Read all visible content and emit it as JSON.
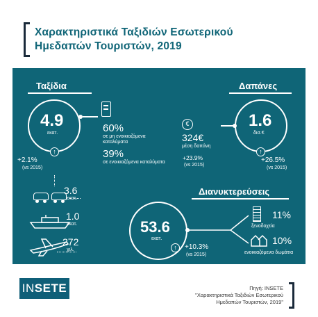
{
  "title": {
    "line1": "Χαρακτηριστικά Ταξιδιών Εσωτερικού",
    "line2": "Ημεδαπών Τουριστών, 2019"
  },
  "trips": {
    "heading": "Ταξίδια",
    "total": "4.9",
    "total_unit": "εκατ.",
    "change": "+2.1%",
    "change_note": "(vs 2015)",
    "non_rented_pct": "60%",
    "non_rented_label": "σε μη ενοικιαζόμενα καταλύματα",
    "rented_pct": "39%",
    "rented_label": "σε ενοικιαζόμενα καταλύματα",
    "road": "3.6",
    "road_unit": "εκατ.",
    "sea": "1.0",
    "sea_unit": "εκατ.",
    "air": "272",
    "air_unit": "χιλ."
  },
  "spending": {
    "heading": "Δαπάνες",
    "total": "1.6",
    "total_unit": "δισ.€",
    "avg": "324€",
    "avg_label": "μέση δαπάνη",
    "avg_change": "+23.9%",
    "avg_change_note": "(vs 2015)",
    "change": "+26.5%",
    "change_note": "(vs 2015)",
    "euro_symbol": "€"
  },
  "nights": {
    "heading": "Διανυκτερεύσεις",
    "total": "53.6",
    "total_unit": "εκατ.",
    "change": "+10.3%",
    "change_note": "(vs 2015)",
    "hotels_pct": "11%",
    "hotels_label": "ξενοδοχεία",
    "rooms_pct": "10%",
    "rooms_label": "ενοικιαζόμενα δωμάτια"
  },
  "footer": {
    "logo_in": "IN",
    "logo_sete": "SETE",
    "source_line1": "Πηγή: INSETE",
    "source_line2": "\"Χαρακτηριστικά Ταξιδιών Εσωτερικού",
    "source_line3": "Ημεδαπών Τουριστών, 2019\""
  },
  "colors": {
    "teal": "#0f6577",
    "white": "#ffffff",
    "dark": "#1a2a3a"
  },
  "icons": [
    "suitcase-icon",
    "car-icon",
    "ship-icon",
    "plane-icon",
    "euro-icon",
    "hotel-icon",
    "house-icon",
    "arrow-up-icon"
  ],
  "chart_data": {
    "type": "table",
    "trips_million": 4.9,
    "trips_change_pct": 2.1,
    "accommodation_share_pct": {
      "non_rented": 60,
      "rented": 39
    },
    "transport": {
      "road_million": 3.6,
      "sea_million": 1.0,
      "air_thousand": 272
    },
    "spending_billion_eur": 1.6,
    "spending_change_pct": 26.5,
    "avg_spending_eur": 324,
    "avg_spending_change_pct": 23.9,
    "nights_million": 53.6,
    "nights_change_pct": 10.3,
    "nights_share_pct": {
      "hotels": 11,
      "rented_rooms": 10
    }
  }
}
